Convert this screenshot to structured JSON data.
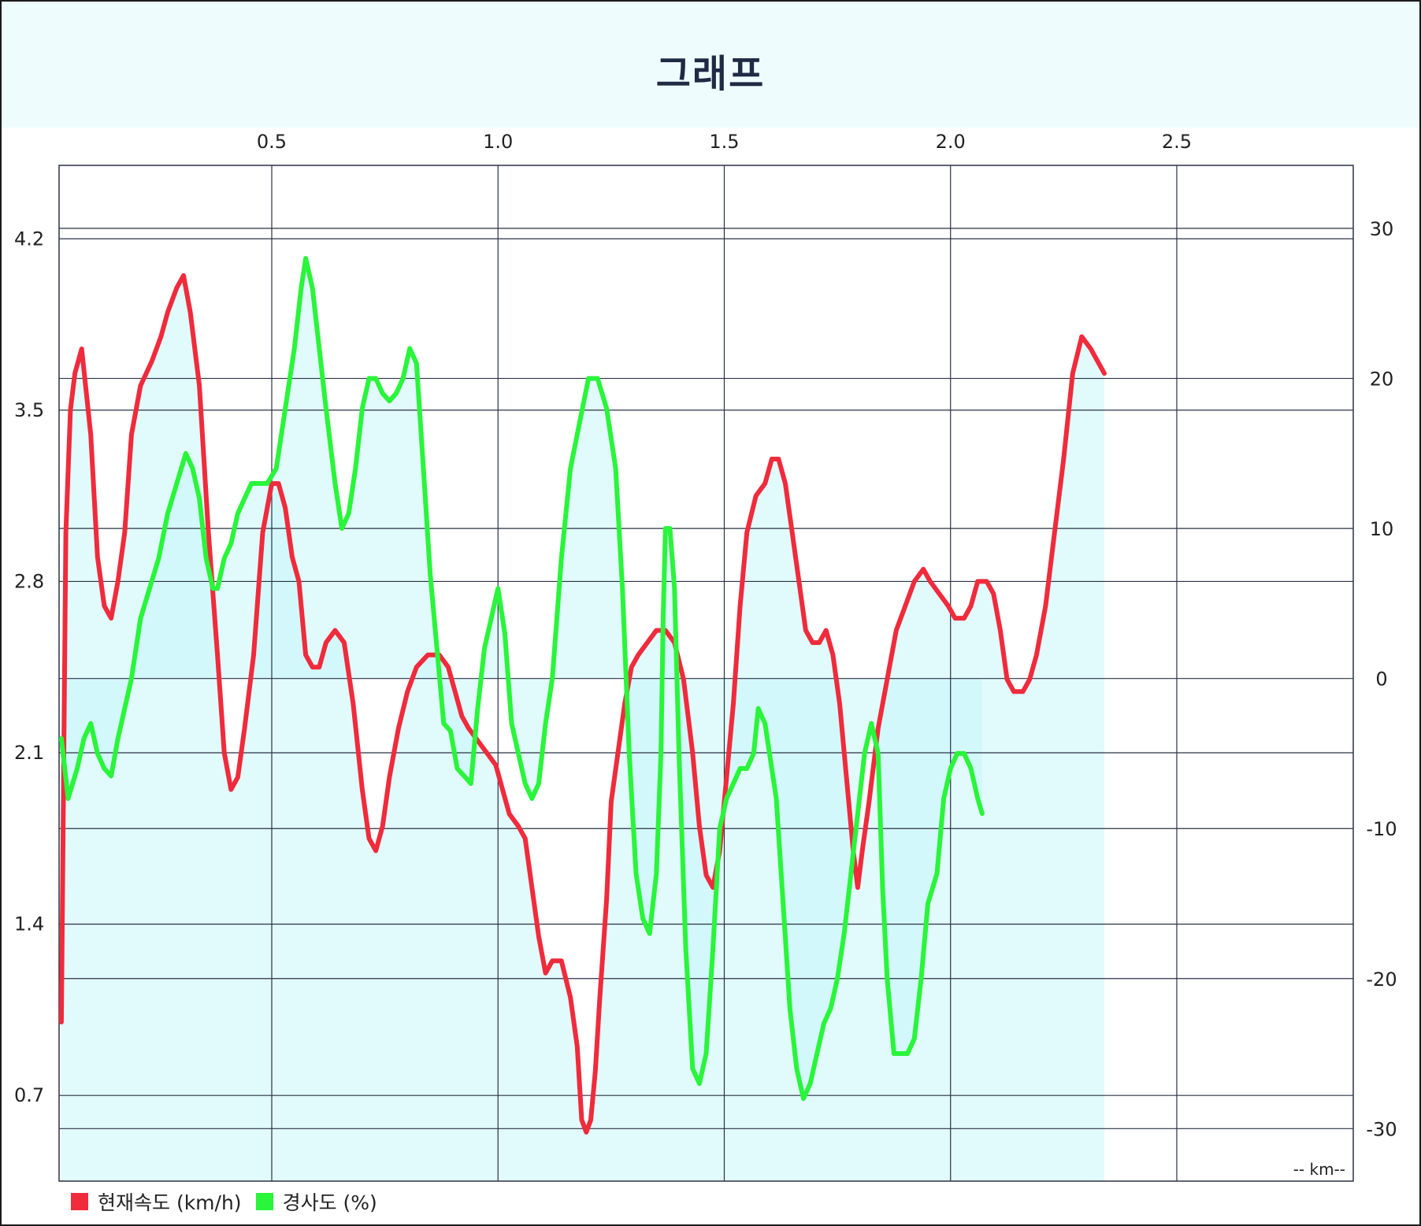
{
  "title": "그래프",
  "chart_data": {
    "type": "line",
    "title": "그래프",
    "x_unit_label": "-- km--",
    "x_range": [
      0.03,
      2.89
    ],
    "x_ticks": [
      0.5,
      1.0,
      1.5,
      2.0,
      2.5
    ],
    "y_left": {
      "range": [
        0.35,
        4.5
      ],
      "ticks": [
        0.7,
        1.4,
        2.1,
        2.8,
        3.5,
        4.2
      ]
    },
    "y_right": {
      "range": [
        -33.5,
        34.2
      ],
      "ticks": [
        -30,
        -20,
        -10,
        0,
        10,
        20,
        30
      ]
    },
    "grid": true,
    "legend_position": "bottom-left",
    "series": [
      {
        "name": "현재속도 (km/h)",
        "axis": "left",
        "color": "#ef2b3c",
        "points": [
          [
            0.035,
            1.0
          ],
          [
            0.045,
            3.0
          ],
          [
            0.055,
            3.5
          ],
          [
            0.065,
            3.65
          ],
          [
            0.08,
            3.75
          ],
          [
            0.1,
            3.4
          ],
          [
            0.115,
            2.9
          ],
          [
            0.13,
            2.7
          ],
          [
            0.145,
            2.65
          ],
          [
            0.16,
            2.8
          ],
          [
            0.175,
            3.0
          ],
          [
            0.19,
            3.4
          ],
          [
            0.21,
            3.6
          ],
          [
            0.235,
            3.7
          ],
          [
            0.255,
            3.8
          ],
          [
            0.27,
            3.9
          ],
          [
            0.29,
            4.0
          ],
          [
            0.305,
            4.05
          ],
          [
            0.32,
            3.9
          ],
          [
            0.34,
            3.6
          ],
          [
            0.36,
            3.0
          ],
          [
            0.38,
            2.5
          ],
          [
            0.395,
            2.1
          ],
          [
            0.41,
            1.95
          ],
          [
            0.425,
            2.0
          ],
          [
            0.44,
            2.2
          ],
          [
            0.46,
            2.5
          ],
          [
            0.48,
            3.0
          ],
          [
            0.5,
            3.2
          ],
          [
            0.515,
            3.2
          ],
          [
            0.53,
            3.1
          ],
          [
            0.545,
            2.9
          ],
          [
            0.56,
            2.8
          ],
          [
            0.575,
            2.5
          ],
          [
            0.59,
            2.45
          ],
          [
            0.605,
            2.45
          ],
          [
            0.62,
            2.55
          ],
          [
            0.64,
            2.6
          ],
          [
            0.66,
            2.55
          ],
          [
            0.68,
            2.3
          ],
          [
            0.7,
            1.95
          ],
          [
            0.715,
            1.75
          ],
          [
            0.73,
            1.7
          ],
          [
            0.745,
            1.8
          ],
          [
            0.76,
            2.0
          ],
          [
            0.78,
            2.2
          ],
          [
            0.8,
            2.35
          ],
          [
            0.82,
            2.45
          ],
          [
            0.845,
            2.5
          ],
          [
            0.87,
            2.5
          ],
          [
            0.89,
            2.45
          ],
          [
            0.905,
            2.35
          ],
          [
            0.92,
            2.25
          ],
          [
            0.935,
            2.2
          ],
          [
            0.955,
            2.15
          ],
          [
            0.975,
            2.1
          ],
          [
            0.995,
            2.05
          ],
          [
            1.01,
            1.95
          ],
          [
            1.025,
            1.85
          ],
          [
            1.045,
            1.8
          ],
          [
            1.06,
            1.75
          ],
          [
            1.075,
            1.55
          ],
          [
            1.09,
            1.35
          ],
          [
            1.105,
            1.2
          ],
          [
            1.12,
            1.25
          ],
          [
            1.14,
            1.25
          ],
          [
            1.16,
            1.1
          ],
          [
            1.175,
            0.9
          ],
          [
            1.185,
            0.6
          ],
          [
            1.195,
            0.55
          ],
          [
            1.205,
            0.6
          ],
          [
            1.215,
            0.8
          ],
          [
            1.225,
            1.1
          ],
          [
            1.24,
            1.5
          ],
          [
            1.25,
            1.9
          ],
          [
            1.265,
            2.1
          ],
          [
            1.28,
            2.3
          ],
          [
            1.295,
            2.45
          ],
          [
            1.31,
            2.5
          ],
          [
            1.33,
            2.55
          ],
          [
            1.35,
            2.6
          ],
          [
            1.37,
            2.6
          ],
          [
            1.39,
            2.55
          ],
          [
            1.41,
            2.4
          ],
          [
            1.43,
            2.1
          ],
          [
            1.445,
            1.8
          ],
          [
            1.46,
            1.6
          ],
          [
            1.475,
            1.55
          ],
          [
            1.49,
            1.7
          ],
          [
            1.505,
            2.0
          ],
          [
            1.52,
            2.3
          ],
          [
            1.535,
            2.7
          ],
          [
            1.55,
            3.0
          ],
          [
            1.57,
            3.15
          ],
          [
            1.59,
            3.2
          ],
          [
            1.605,
            3.3
          ],
          [
            1.62,
            3.3
          ],
          [
            1.635,
            3.2
          ],
          [
            1.65,
            3.0
          ],
          [
            1.665,
            2.8
          ],
          [
            1.68,
            2.6
          ],
          [
            1.695,
            2.55
          ],
          [
            1.71,
            2.55
          ],
          [
            1.725,
            2.6
          ],
          [
            1.74,
            2.5
          ],
          [
            1.755,
            2.3
          ],
          [
            1.77,
            2.0
          ],
          [
            1.785,
            1.7
          ],
          [
            1.795,
            1.55
          ],
          [
            1.805,
            1.7
          ],
          [
            1.82,
            1.9
          ],
          [
            1.84,
            2.2
          ],
          [
            1.86,
            2.4
          ],
          [
            1.88,
            2.6
          ],
          [
            1.9,
            2.7
          ],
          [
            1.92,
            2.8
          ],
          [
            1.94,
            2.85
          ],
          [
            1.955,
            2.8
          ],
          [
            1.975,
            2.75
          ],
          [
            1.995,
            2.7
          ],
          [
            2.01,
            2.65
          ],
          [
            2.03,
            2.65
          ],
          [
            2.045,
            2.7
          ],
          [
            2.06,
            2.8
          ],
          [
            2.08,
            2.8
          ],
          [
            2.095,
            2.75
          ],
          [
            2.11,
            2.6
          ],
          [
            2.125,
            2.4
          ],
          [
            2.14,
            2.35
          ],
          [
            2.16,
            2.35
          ],
          [
            2.175,
            2.4
          ],
          [
            2.19,
            2.5
          ],
          [
            2.21,
            2.7
          ],
          [
            2.23,
            3.0
          ],
          [
            2.25,
            3.3
          ],
          [
            2.27,
            3.65
          ],
          [
            2.29,
            3.8
          ],
          [
            2.31,
            3.75
          ],
          [
            2.325,
            3.7
          ],
          [
            2.34,
            3.65
          ]
        ]
      },
      {
        "name": "경사도 (%)",
        "axis": "right",
        "color": "#29f53a",
        "points": [
          [
            0.035,
            -4
          ],
          [
            0.05,
            -8
          ],
          [
            0.07,
            -6
          ],
          [
            0.085,
            -4
          ],
          [
            0.1,
            -3
          ],
          [
            0.115,
            -5
          ],
          [
            0.13,
            -6
          ],
          [
            0.145,
            -6.5
          ],
          [
            0.16,
            -4
          ],
          [
            0.175,
            -2
          ],
          [
            0.19,
            0
          ],
          [
            0.21,
            4
          ],
          [
            0.23,
            6
          ],
          [
            0.25,
            8
          ],
          [
            0.27,
            11
          ],
          [
            0.29,
            13
          ],
          [
            0.31,
            15
          ],
          [
            0.325,
            14
          ],
          [
            0.34,
            12
          ],
          [
            0.355,
            8
          ],
          [
            0.37,
            6
          ],
          [
            0.38,
            6
          ],
          [
            0.395,
            8
          ],
          [
            0.41,
            9
          ],
          [
            0.425,
            11
          ],
          [
            0.44,
            12
          ],
          [
            0.455,
            13
          ],
          [
            0.47,
            13
          ],
          [
            0.49,
            13
          ],
          [
            0.51,
            14
          ],
          [
            0.53,
            18
          ],
          [
            0.55,
            22
          ],
          [
            0.565,
            26
          ],
          [
            0.575,
            28
          ],
          [
            0.59,
            26
          ],
          [
            0.605,
            22
          ],
          [
            0.62,
            18
          ],
          [
            0.64,
            13
          ],
          [
            0.655,
            10
          ],
          [
            0.67,
            11
          ],
          [
            0.685,
            14
          ],
          [
            0.7,
            18
          ],
          [
            0.715,
            20
          ],
          [
            0.73,
            20
          ],
          [
            0.745,
            19
          ],
          [
            0.76,
            18.5
          ],
          [
            0.775,
            19
          ],
          [
            0.79,
            20
          ],
          [
            0.805,
            22
          ],
          [
            0.82,
            21
          ],
          [
            0.835,
            14
          ],
          [
            0.85,
            7
          ],
          [
            0.865,
            2
          ],
          [
            0.88,
            -3
          ],
          [
            0.895,
            -3.5
          ],
          [
            0.91,
            -6
          ],
          [
            0.925,
            -6.5
          ],
          [
            0.94,
            -7
          ],
          [
            0.955,
            -2
          ],
          [
            0.97,
            2
          ],
          [
            0.985,
            4
          ],
          [
            1.0,
            6
          ],
          [
            1.015,
            3
          ],
          [
            1.03,
            -3
          ],
          [
            1.045,
            -5
          ],
          [
            1.06,
            -7
          ],
          [
            1.075,
            -8
          ],
          [
            1.09,
            -7
          ],
          [
            1.105,
            -3
          ],
          [
            1.12,
            0
          ],
          [
            1.14,
            8
          ],
          [
            1.16,
            14
          ],
          [
            1.18,
            17
          ],
          [
            1.2,
            20
          ],
          [
            1.22,
            20
          ],
          [
            1.24,
            18
          ],
          [
            1.26,
            14
          ],
          [
            1.275,
            6
          ],
          [
            1.29,
            -5
          ],
          [
            1.305,
            -13
          ],
          [
            1.32,
            -16
          ],
          [
            1.335,
            -17
          ],
          [
            1.35,
            -13
          ],
          [
            1.36,
            -5
          ],
          [
            1.365,
            4
          ],
          [
            1.37,
            10
          ],
          [
            1.38,
            10
          ],
          [
            1.39,
            6
          ],
          [
            1.4,
            -5
          ],
          [
            1.415,
            -18
          ],
          [
            1.43,
            -26
          ],
          [
            1.445,
            -27
          ],
          [
            1.46,
            -25
          ],
          [
            1.475,
            -18
          ],
          [
            1.49,
            -10
          ],
          [
            1.505,
            -8
          ],
          [
            1.52,
            -7
          ],
          [
            1.535,
            -6
          ],
          [
            1.55,
            -6
          ],
          [
            1.565,
            -5
          ],
          [
            1.575,
            -2
          ],
          [
            1.59,
            -3
          ],
          [
            1.6,
            -5
          ],
          [
            1.615,
            -8
          ],
          [
            1.63,
            -15
          ],
          [
            1.645,
            -22
          ],
          [
            1.66,
            -26
          ],
          [
            1.675,
            -28
          ],
          [
            1.69,
            -27
          ],
          [
            1.705,
            -25
          ],
          [
            1.72,
            -23
          ],
          [
            1.735,
            -22
          ],
          [
            1.75,
            -20
          ],
          [
            1.765,
            -17
          ],
          [
            1.78,
            -13
          ],
          [
            1.795,
            -9
          ],
          [
            1.81,
            -5
          ],
          [
            1.825,
            -3
          ],
          [
            1.84,
            -5
          ],
          [
            1.85,
            -14
          ],
          [
            1.86,
            -20
          ],
          [
            1.875,
            -25
          ],
          [
            1.89,
            -25
          ],
          [
            1.905,
            -25
          ],
          [
            1.92,
            -24
          ],
          [
            1.935,
            -20
          ],
          [
            1.95,
            -15
          ],
          [
            1.97,
            -13
          ],
          [
            1.985,
            -8
          ],
          [
            2.0,
            -6
          ],
          [
            2.015,
            -5
          ],
          [
            2.03,
            -5
          ],
          [
            2.045,
            -6
          ],
          [
            2.06,
            -8
          ],
          [
            2.07,
            -9
          ]
        ]
      }
    ]
  },
  "legend": [
    {
      "label": "현재속도 (km/h)",
      "color": "#ef2b3c"
    },
    {
      "label": "경사도 (%)",
      "color": "#29f53a"
    }
  ]
}
